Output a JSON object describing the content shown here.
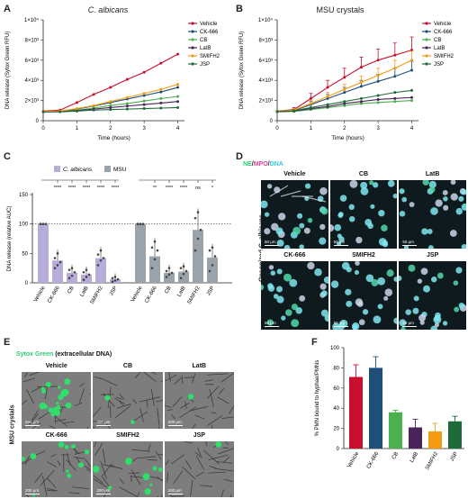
{
  "panels": {
    "A": "A",
    "B": "B",
    "C": "C",
    "D": "D",
    "E": "E",
    "F": "F"
  },
  "legend_series": [
    "Vehicle",
    "CK-666",
    "CB",
    "LatB",
    "SMIFH2",
    "JSP"
  ],
  "colors": {
    "Vehicle": "#c8102e",
    "CK-666": "#1f4e79",
    "CB": "#4caf50",
    "LatB": "#4a235a",
    "SMIFH2": "#f39c12",
    "JSP": "#1e6b3a",
    "albicans_bar": "#b8acd9",
    "msu_bar": "#9aa3aa",
    "ne": "#2ecc71",
    "mpo": "#e84393",
    "dna": "#35c9e0"
  },
  "chart_data": [
    {
      "type": "line",
      "title": "C. albicans",
      "xlabel": "Time (hours)",
      "ylabel": "DNA release (Sytox Green RFU)",
      "x": [
        0,
        0.5,
        1,
        1.5,
        2,
        2.5,
        3,
        3.5,
        4
      ],
      "ylim": [
        0,
        10000
      ],
      "yticks": [
        "0",
        "2×10³",
        "4×10³",
        "6×10³",
        "8×10³",
        "1×10⁴"
      ],
      "xticks": [
        "0",
        "1",
        "2",
        "3",
        "4"
      ],
      "series": [
        {
          "name": "Vehicle",
          "values": [
            950,
            1050,
            1800,
            2600,
            3300,
            4100,
            4800,
            5700,
            6600
          ]
        },
        {
          "name": "CK-666",
          "values": [
            900,
            950,
            1150,
            1450,
            1800,
            2150,
            2500,
            2850,
            3300
          ]
        },
        {
          "name": "CB",
          "values": [
            900,
            930,
            1050,
            1250,
            1500,
            1700,
            1950,
            2200,
            2400
          ]
        },
        {
          "name": "LatB",
          "values": [
            880,
            900,
            1000,
            1150,
            1300,
            1450,
            1600,
            1750,
            1900
          ]
        },
        {
          "name": "SMIFH2",
          "values": [
            920,
            960,
            1200,
            1500,
            1900,
            2300,
            2700,
            3100,
            3600
          ]
        },
        {
          "name": "JSP",
          "values": [
            870,
            880,
            950,
            1050,
            1100,
            1150,
            1200,
            1250,
            1300
          ]
        }
      ]
    },
    {
      "type": "line",
      "title": "MSU crystals",
      "xlabel": "Time (hours)",
      "ylabel": "DNA release (Sytox Green RFU)",
      "x": [
        0,
        0.5,
        1,
        1.5,
        2,
        2.5,
        3,
        3.5,
        4
      ],
      "ylim": [
        0,
        10000
      ],
      "yticks": [
        "0",
        "2×10³",
        "4×10³",
        "6×10³",
        "8×10³",
        "1×10⁴"
      ],
      "xticks": [
        "0",
        "1",
        "2",
        "3",
        "4"
      ],
      "series": [
        {
          "name": "Vehicle",
          "values": [
            950,
            1100,
            2200,
            3300,
            4300,
            5300,
            6000,
            6500,
            7000
          ],
          "err": [
            0,
            200,
            500,
            700,
            900,
            1000,
            1100,
            1200,
            1300
          ]
        },
        {
          "name": "CK-666",
          "values": [
            920,
            1000,
            1600,
            2200,
            2800,
            3400,
            3900,
            4400,
            5000
          ],
          "err": [
            0,
            150,
            300,
            400,
            500,
            600,
            700,
            800,
            900
          ]
        },
        {
          "name": "CB",
          "values": [
            880,
            920,
            1100,
            1300,
            1500,
            1700,
            1800,
            1900,
            2000
          ]
        },
        {
          "name": "LatB",
          "values": [
            900,
            950,
            1200,
            1400,
            1700,
            1900,
            2100,
            2200,
            2300
          ]
        },
        {
          "name": "SMIFH2",
          "values": [
            940,
            1050,
            1700,
            2400,
            3100,
            3800,
            4500,
            5200,
            6000
          ],
          "err": [
            0,
            150,
            300,
            400,
            500,
            600,
            700,
            800,
            900
          ]
        },
        {
          "name": "JSP",
          "values": [
            900,
            980,
            1300,
            1600,
            1900,
            2200,
            2500,
            2800,
            3000
          ]
        }
      ]
    },
    {
      "type": "bar",
      "ylabel": "DNA release (relative AUC)",
      "ylim": [
        0,
        150
      ],
      "yticks": [
        "0",
        "50",
        "100",
        "150"
      ],
      "legend": [
        "C. albicans",
        "MSU"
      ],
      "categories": [
        "Vehicle",
        "CK-666",
        "CB",
        "LatB",
        "SMIFH2",
        "JSP"
      ],
      "series": [
        {
          "name": "C. albicans",
          "values": [
            100,
            38,
            17,
            14,
            42,
            6
          ]
        },
        {
          "name": "MSU",
          "values": [
            100,
            45,
            17,
            19,
            90,
            43
          ]
        }
      ],
      "significance_albicans": [
        "",
        "****",
        "****",
        "****",
        "****",
        "****"
      ],
      "significance_msu": [
        "",
        "**",
        "****",
        "****",
        "ns",
        "*"
      ]
    },
    {
      "type": "bar",
      "ylabel": "% PMN bound to hyphae/PMNs",
      "ylim": [
        0,
        100
      ],
      "yticks": [
        "0",
        "20",
        "40",
        "60",
        "80",
        "100"
      ],
      "categories": [
        "Vehicle",
        "CK-666",
        "CB",
        "LatB",
        "SMIFH2",
        "JSP"
      ],
      "values": [
        71,
        80,
        36,
        21,
        17,
        27
      ],
      "err": [
        12,
        11,
        2,
        8,
        8,
        5
      ]
    }
  ],
  "panel_d": {
    "legend_ne": "NE",
    "legend_mpo": "MPO",
    "legend_dna": "DNA",
    "side_label": "Opsonized C. albicans",
    "tiles": [
      "Vehicle",
      "CB",
      "LatB",
      "CK-666",
      "SMIFH2",
      "JSP"
    ],
    "scale": "50 μm"
  },
  "panel_e": {
    "legend": "Sytox Green",
    "legend_rest": "(extracellular DNA)",
    "side_label": "MSU crystals",
    "tiles": [
      "Vehicle",
      "CB",
      "LatB",
      "CK-666",
      "SMIFH2",
      "JSP"
    ],
    "scale": "200 μm"
  }
}
